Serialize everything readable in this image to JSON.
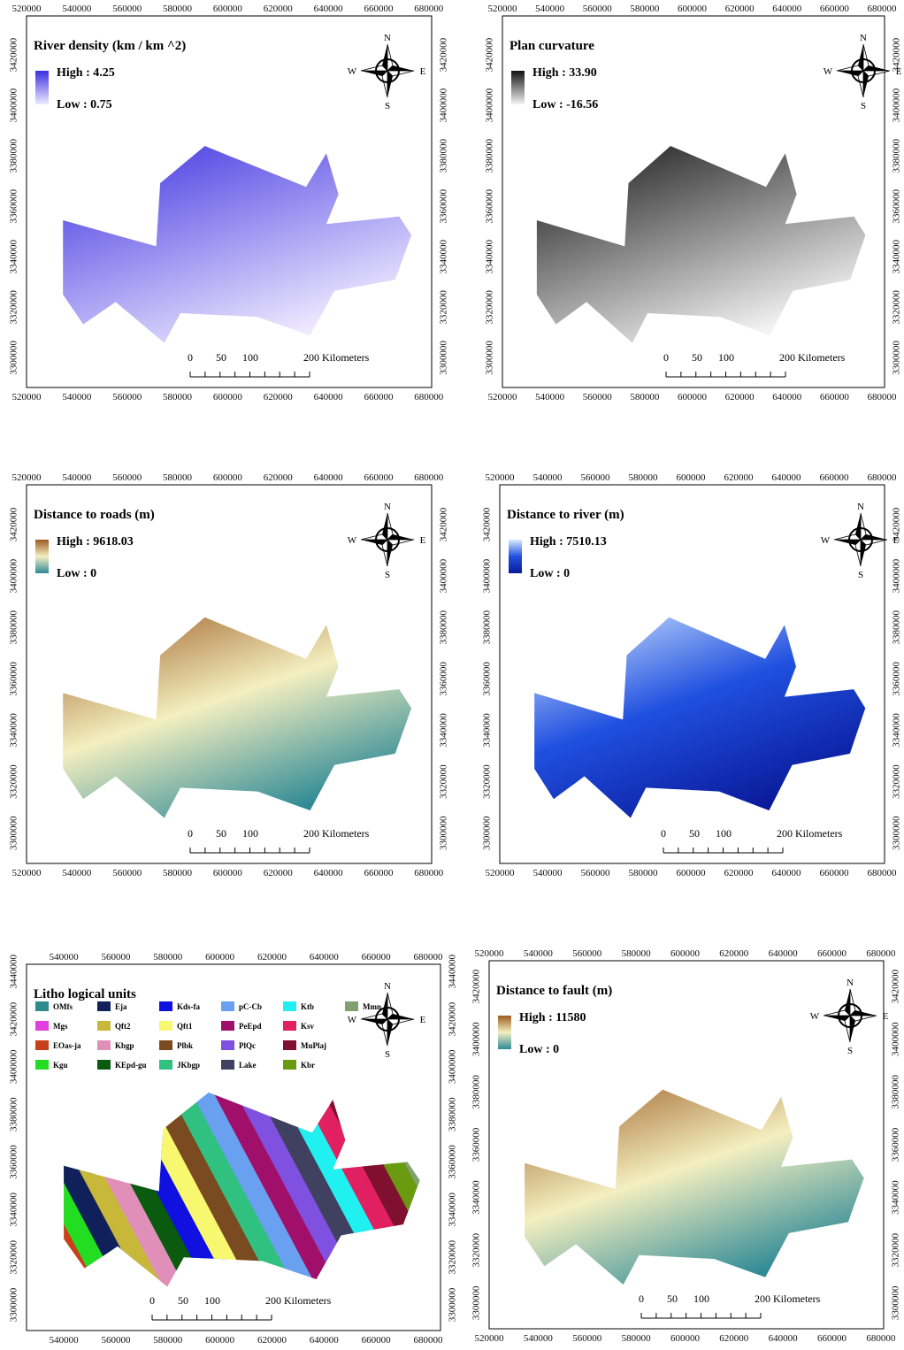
{
  "compass": {
    "n": "N",
    "s": "S",
    "e": "E",
    "w": "W"
  },
  "scale_bar": {
    "labels": [
      "0",
      "50",
      "100",
      "200  Kilometers"
    ]
  },
  "panels": [
    {
      "title": "River density (km / km ^2)",
      "legend": {
        "high": "High : 4.25",
        "low": "Low : 0.75",
        "ramp": [
          "#3b2fe0",
          "#efeaff"
        ]
      },
      "x_ticks": [
        520000,
        540000,
        560000,
        580000,
        600000,
        620000,
        640000,
        660000,
        680000
      ],
      "y_ticks": [
        3420000,
        3400000,
        3380000,
        3360000,
        3340000,
        3320000,
        3300000
      ]
    },
    {
      "title": "Plan curvature",
      "legend": {
        "high": "High : 33.90",
        "low": "Low : -16.56",
        "ramp": [
          "#111111",
          "#f4f4f4"
        ]
      },
      "x_ticks": [
        520000,
        540000,
        560000,
        580000,
        600000,
        620000,
        640000,
        660000,
        680000
      ],
      "y_ticks": [
        3420000,
        3400000,
        3380000,
        3360000,
        3340000,
        3320000,
        3300000
      ]
    },
    {
      "title": "Distance to roads (m)",
      "legend": {
        "high": "High : 9618.03",
        "low": "Low : 0",
        "ramp": [
          "#9a5a20",
          "#f4efc0",
          "#2f8a96"
        ]
      },
      "x_ticks": [
        520000,
        540000,
        560000,
        580000,
        600000,
        620000,
        640000,
        660000,
        680000
      ],
      "y_ticks": [
        3420000,
        3400000,
        3380000,
        3360000,
        3340000,
        3320000,
        3300000
      ]
    },
    {
      "title": "Distance to river  (m)",
      "legend": {
        "high": "High : 7510.13",
        "low": "Low : 0",
        "ramp": [
          "#d8ecff",
          "#2050e0",
          "#0a1a9a"
        ]
      },
      "x_ticks": [
        520000,
        540000,
        560000,
        580000,
        600000,
        620000,
        640000,
        660000,
        680000
      ],
      "y_ticks": [
        3420000,
        3400000,
        3380000,
        3360000,
        3340000,
        3320000,
        3300000
      ]
    },
    {
      "title": "Litho logical units",
      "legend": {
        "units": [
          {
            "name": "OMfs",
            "color": "#2e8b8b"
          },
          {
            "name": "Mgs",
            "color": "#e040e0"
          },
          {
            "name": "EOas-ja",
            "color": "#c8401a"
          },
          {
            "name": "Kgu",
            "color": "#22dd22"
          },
          {
            "name": "Eja",
            "color": "#10205a"
          },
          {
            "name": "Qft2",
            "color": "#c8b83a"
          },
          {
            "name": "Kbgp",
            "color": "#e090b8"
          },
          {
            "name": "KEpd-gu",
            "color": "#0a5a10"
          },
          {
            "name": "Kds-fa",
            "color": "#1010e0"
          },
          {
            "name": "Qft1",
            "color": "#f8f870"
          },
          {
            "name": "Plbk",
            "color": "#7a4a20"
          },
          {
            "name": "JKbgp",
            "color": "#30c080"
          },
          {
            "name": "pC-Cb",
            "color": "#6aa0f0"
          },
          {
            "name": "PeEpd",
            "color": "#a0106a"
          },
          {
            "name": "PlQc",
            "color": "#8050e0"
          },
          {
            "name": "Lake",
            "color": "#404060"
          },
          {
            "name": "Ktb",
            "color": "#20f0f0"
          },
          {
            "name": "Ksv",
            "color": "#e02060"
          },
          {
            "name": "MuPlaj",
            "color": "#801030"
          },
          {
            "name": "Kbr",
            "color": "#6a9a10"
          },
          {
            "name": "Mmn",
            "color": "#80a070"
          }
        ]
      },
      "x_ticks": [
        540000,
        560000,
        580000,
        600000,
        620000,
        640000,
        660000,
        680000
      ],
      "y_ticks": [
        3440000,
        3420000,
        3400000,
        3380000,
        3360000,
        3340000,
        3320000,
        3300000
      ]
    },
    {
      "title": "Distance to fault (m)",
      "legend": {
        "high": "High : 11580",
        "low": "Low : 0",
        "ramp": [
          "#9a5a20",
          "#f4efc0",
          "#2f8a96"
        ]
      },
      "x_ticks": [
        520000,
        540000,
        560000,
        580000,
        600000,
        620000,
        640000,
        660000,
        680000
      ],
      "y_ticks": [
        3420000,
        3400000,
        3380000,
        3360000,
        3340000,
        3320000,
        3300000
      ]
    }
  ]
}
